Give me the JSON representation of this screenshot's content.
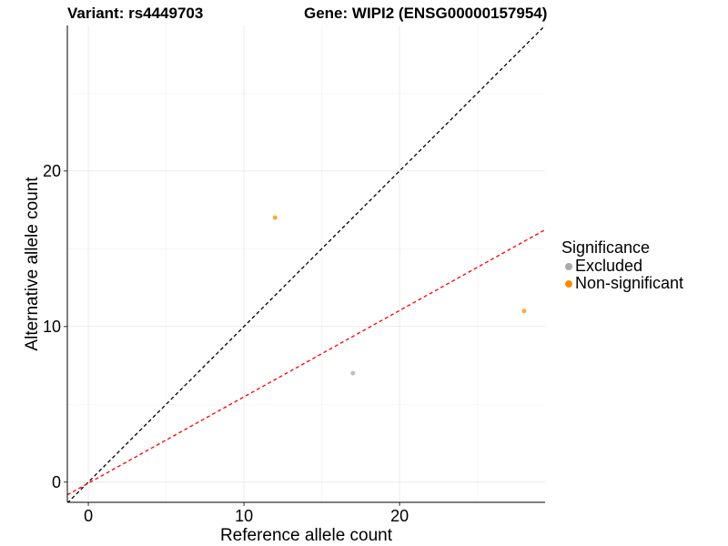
{
  "chart_data": {
    "type": "scatter",
    "title_left": "Variant: rs4449703",
    "title_right": "Gene: WIPI2 (ENSG00000157954)",
    "xlabel": "Reference allele count",
    "ylabel": "Alternative allele count",
    "xlim": [
      -1.35,
      29.35
    ],
    "ylim": [
      -1.3,
      29.35
    ],
    "xticks": [
      0,
      10,
      20
    ],
    "yticks": [
      0,
      10,
      20
    ],
    "minor_ticks": [
      5,
      15,
      25
    ],
    "grid": true,
    "points": [
      {
        "x": 12,
        "y": 17,
        "group": "Non-significant"
      },
      {
        "x": 28,
        "y": 11,
        "group": "Non-significant"
      },
      {
        "x": 17,
        "y": 7,
        "group": "Excluded"
      }
    ],
    "lines": [
      {
        "name": "identity",
        "slope": 1,
        "intercept": 0,
        "color": "#000000"
      },
      {
        "name": "fit",
        "slope": 0.555,
        "intercept": -0.07,
        "color": "#ff0000"
      }
    ],
    "legend": {
      "title": "Significance",
      "placement": "right",
      "entries": [
        {
          "label": "Excluded",
          "color": "#aaaaaa"
        },
        {
          "label": "Non-significant",
          "color": "#ff8c00"
        }
      ]
    }
  }
}
